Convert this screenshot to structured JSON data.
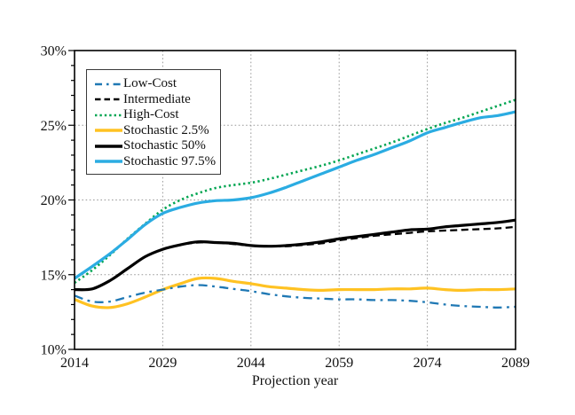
{
  "chart_data": {
    "type": "line",
    "title": "",
    "xlabel": "Projection year",
    "ylabel": "",
    "xlim": [
      2014,
      2089
    ],
    "ylim": [
      10,
      30
    ],
    "x_ticks": [
      2014,
      2029,
      2044,
      2059,
      2074,
      2089
    ],
    "y_ticks": [
      {
        "value": 10,
        "label": "10%"
      },
      {
        "value": 15,
        "label": "15%"
      },
      {
        "value": 20,
        "label": "20%"
      },
      {
        "value": 25,
        "label": "25%"
      },
      {
        "value": 30,
        "label": "30%"
      }
    ],
    "y_minor_step": 1,
    "grid": {
      "h_values": [
        15,
        20,
        25
      ],
      "v_values": [
        2029,
        2044,
        2059,
        2074
      ],
      "color": "#9a9a9a",
      "style": "dotted"
    },
    "frame_color": "#000000",
    "legend_position": "upper-left",
    "x": [
      2014,
      2017,
      2020,
      2023,
      2026,
      2029,
      2032,
      2035,
      2038,
      2041,
      2044,
      2047,
      2050,
      2053,
      2056,
      2059,
      2062,
      2065,
      2068,
      2071,
      2074,
      2077,
      2080,
      2083,
      2086,
      2089
    ],
    "series": [
      {
        "name": "Low-Cost",
        "color": "#1F78B4",
        "style": "dashdot",
        "width": 2.3,
        "values": [
          13.6,
          13.2,
          13.2,
          13.5,
          13.8,
          14.0,
          14.2,
          14.3,
          14.2,
          14.05,
          13.9,
          13.7,
          13.55,
          13.45,
          13.4,
          13.35,
          13.35,
          13.3,
          13.3,
          13.25,
          13.15,
          13.0,
          12.9,
          12.85,
          12.8,
          12.85
        ]
      },
      {
        "name": "Intermediate",
        "color": "#000000",
        "style": "dashed",
        "width": 2.3,
        "values": [
          14.0,
          14.05,
          14.6,
          15.4,
          16.2,
          16.7,
          17.0,
          17.15,
          17.15,
          17.05,
          16.95,
          16.9,
          16.9,
          17.0,
          17.1,
          17.3,
          17.45,
          17.6,
          17.7,
          17.8,
          17.9,
          17.95,
          18.0,
          18.05,
          18.1,
          18.2
        ]
      },
      {
        "name": "High-Cost",
        "color": "#00A551",
        "style": "dotted",
        "width": 2.6,
        "values": [
          14.45,
          15.3,
          16.3,
          17.4,
          18.4,
          19.35,
          20.0,
          20.45,
          20.8,
          21.0,
          21.15,
          21.4,
          21.7,
          22.0,
          22.3,
          22.65,
          23.05,
          23.45,
          23.85,
          24.3,
          24.75,
          25.15,
          25.5,
          25.9,
          26.3,
          26.7
        ]
      },
      {
        "name": "Stochastic 2.5%",
        "color": "#FFC222",
        "style": "solid",
        "width": 3.2,
        "values": [
          13.35,
          12.9,
          12.8,
          13.05,
          13.5,
          14.0,
          14.4,
          14.75,
          14.75,
          14.55,
          14.4,
          14.2,
          14.1,
          14.0,
          13.95,
          14.0,
          14.0,
          14.0,
          14.05,
          14.05,
          14.1,
          14.0,
          13.95,
          14.0,
          14.0,
          14.05
        ]
      },
      {
        "name": "Stochastic 50%",
        "color": "#000000",
        "style": "solid",
        "width": 3.2,
        "values": [
          14.0,
          14.05,
          14.6,
          15.4,
          16.2,
          16.7,
          17.0,
          17.2,
          17.15,
          17.1,
          16.95,
          16.9,
          16.95,
          17.05,
          17.2,
          17.4,
          17.55,
          17.7,
          17.85,
          18.0,
          18.05,
          18.2,
          18.3,
          18.4,
          18.5,
          18.65
        ]
      },
      {
        "name": "Stochastic 97.5%",
        "color": "#2BACE2",
        "style": "solid",
        "width": 3.2,
        "values": [
          14.75,
          15.55,
          16.4,
          17.35,
          18.35,
          19.1,
          19.5,
          19.8,
          19.95,
          20.0,
          20.15,
          20.45,
          20.85,
          21.3,
          21.75,
          22.2,
          22.65,
          23.05,
          23.5,
          23.95,
          24.5,
          24.85,
          25.2,
          25.5,
          25.65,
          25.9
        ]
      }
    ]
  }
}
